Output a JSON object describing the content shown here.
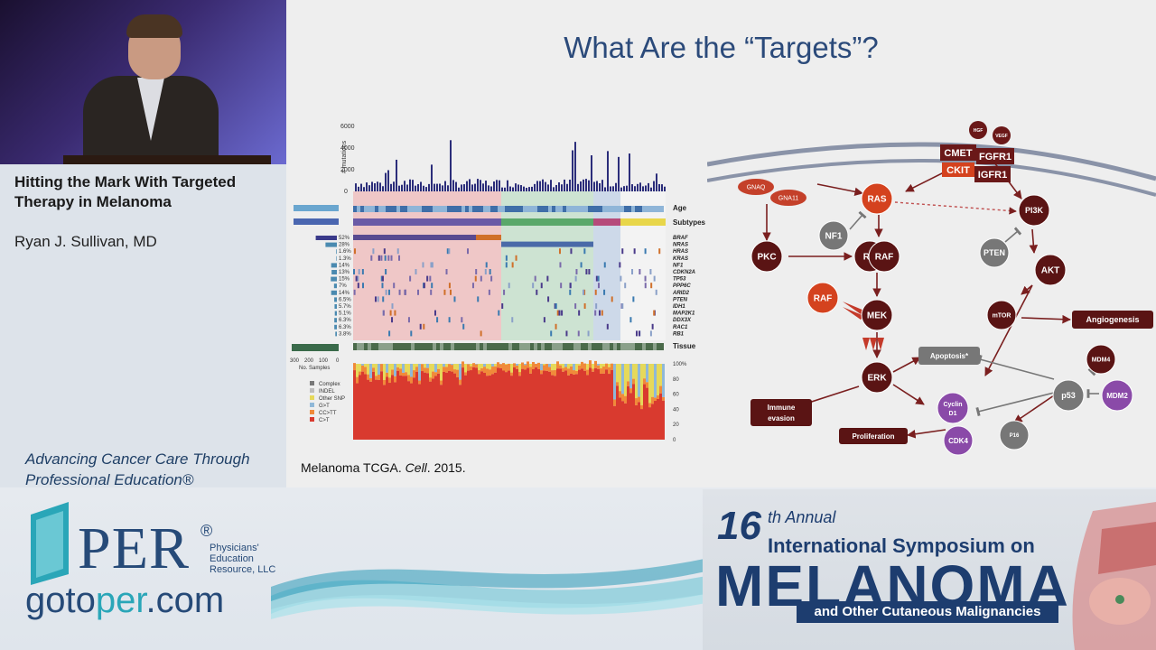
{
  "talk": {
    "title": "Hitting the Mark With Targeted Therapy in Melanoma",
    "speaker": "Ryan J. Sullivan, MD",
    "tagline": "Advancing Cancer Care Through Professional Education®"
  },
  "slide": {
    "title": "What Are the “Targets”?",
    "citation_prefix": "Melanoma TCGA. ",
    "citation_journal": "Cell",
    "citation_suffix": ". 2015.",
    "oncoprint": {
      "y_axis_label": "# mutations",
      "y_ticks": [
        "6000",
        "4000",
        "2000",
        "0"
      ],
      "rows_right": [
        "Age",
        "Subtypes"
      ],
      "genes": [
        "BRAF",
        "NRAS",
        "HRAS",
        "KRAS",
        "NF1",
        "CDKN2A",
        "TP53",
        "PPP6C",
        "ARID2",
        "PTEN",
        "IDH1",
        "MAP2K1",
        "DDX3X",
        "RAC1",
        "RB1"
      ],
      "gene_pcts": [
        "52%",
        "28%",
        "1.6%",
        "1.3%",
        "14%",
        "13%",
        "15%",
        "7%",
        "14%",
        "6.5%",
        "5.7%",
        "5.1%",
        "6.3%",
        "6.3%",
        "3.8%"
      ],
      "tissue_label": "Tissue",
      "samples_ticks": [
        "300",
        "200",
        "100",
        "0"
      ],
      "samples_label": "No. Samples",
      "mut_legend": [
        "Complex",
        "INDEL",
        "Other SNP",
        "G>T",
        "CC>TT",
        "C>T"
      ],
      "mut_colors": [
        "#777777",
        "#bdbdbd",
        "#e6d95a",
        "#8fb8d8",
        "#f08a3a",
        "#d93a2f"
      ],
      "pct_ticks": [
        "100%",
        "80",
        "60",
        "40",
        "20",
        "0"
      ]
    },
    "pathway": {
      "nodes": {
        "hgf": "HGF",
        "vegf": "VEGF",
        "cmet": "CMET",
        "fgfr1": "FGFR1",
        "ckit": "CKIT",
        "igfr1": "IGFR1",
        "gnaq": "GNAQ",
        "gna11": "GNA11",
        "ras": "RAS",
        "nf1": "NF1",
        "pi3k": "PI3K",
        "pkc": "PKC",
        "ra": "RA",
        "raf": "RAF",
        "pten": "PTEN",
        "akt": "AKT",
        "raf_red": "RAF",
        "mek": "MEK",
        "mtor": "mTOR",
        "angiogenesis": "Angiogenesis",
        "apoptosis": "Apoptosis*",
        "mdm4": "MDM4",
        "erk": "ERK",
        "p53": "p53",
        "mdm2": "MDM2",
        "immune1": "Immune",
        "immune2": "evasion",
        "cyclin1": "Cyclin",
        "cyclin2": "D1",
        "proliferation": "Proliferation",
        "cdk4": "CDK4",
        "p16": "P16"
      }
    }
  },
  "banner": {
    "per": "PER",
    "per_reg": "®",
    "per_sub1": "Physicians'",
    "per_sub2": "Education",
    "per_sub3": "Resource, LLC",
    "goto_a": "goto",
    "goto_b": "per",
    "goto_c": ".com",
    "sym_number": "16",
    "sym_annual": "th Annual",
    "sym_intl": "International Symposium on",
    "sym_melanoma": "MELANOMA",
    "sym_sub": "and Other Cutaneous Malignancies"
  }
}
